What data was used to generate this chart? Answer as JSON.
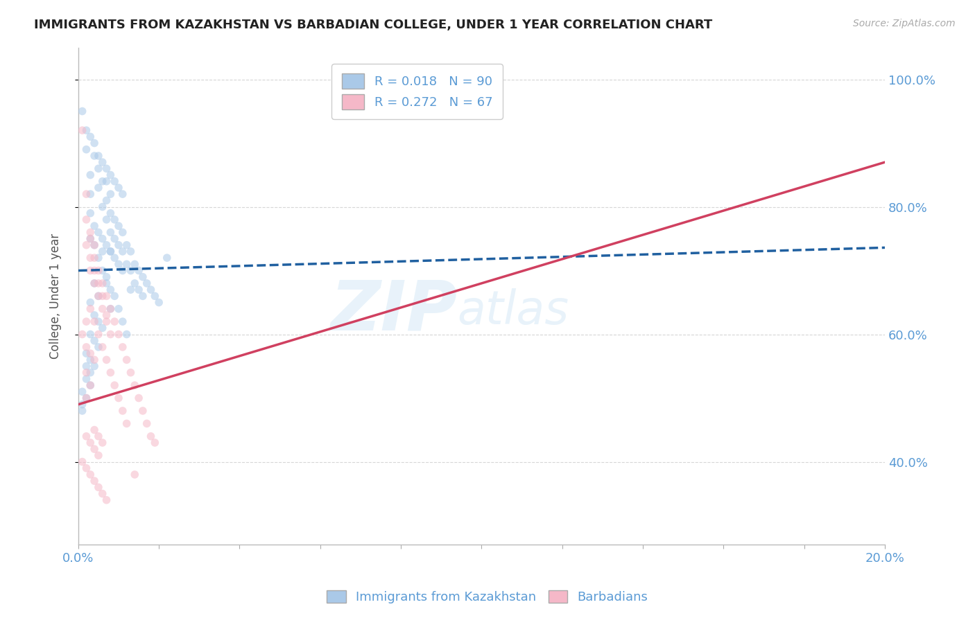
{
  "title": "IMMIGRANTS FROM KAZAKHSTAN VS BARBADIAN COLLEGE, UNDER 1 YEAR CORRELATION CHART",
  "source": "Source: ZipAtlas.com",
  "ylabel": "College, Under 1 year",
  "xlim": [
    0.0,
    0.2
  ],
  "ylim": [
    0.27,
    1.05
  ],
  "yticks": [
    0.4,
    0.6,
    0.8,
    1.0
  ],
  "xticks_shown": [
    0.0,
    0.2
  ],
  "xticks_minor": [
    0.02,
    0.04,
    0.06,
    0.08,
    0.1,
    0.12,
    0.14,
    0.16,
    0.18
  ],
  "legend_entries": [
    {
      "label": "R = 0.018   N = 90",
      "color": "#aac9e8"
    },
    {
      "label": "R = 0.272   N = 67",
      "color": "#f5b8c8"
    }
  ],
  "bottom_legend": [
    {
      "label": "Immigrants from Kazakhstan",
      "color": "#aac9e8"
    },
    {
      "label": "Barbadians",
      "color": "#f5b8c8"
    }
  ],
  "blue_scatter_x": [
    0.001,
    0.002,
    0.003,
    0.003,
    0.004,
    0.005,
    0.005,
    0.006,
    0.006,
    0.007,
    0.007,
    0.007,
    0.008,
    0.008,
    0.008,
    0.008,
    0.009,
    0.009,
    0.01,
    0.01,
    0.01,
    0.011,
    0.011,
    0.011,
    0.012,
    0.012,
    0.013,
    0.013,
    0.013,
    0.014,
    0.014,
    0.015,
    0.015,
    0.016,
    0.016,
    0.017,
    0.018,
    0.019,
    0.02,
    0.022,
    0.004,
    0.005,
    0.006,
    0.007,
    0.008,
    0.009,
    0.01,
    0.011,
    0.012,
    0.003,
    0.004,
    0.005,
    0.006,
    0.007,
    0.008,
    0.003,
    0.004,
    0.005,
    0.006,
    0.003,
    0.004,
    0.005,
    0.002,
    0.003,
    0.004,
    0.002,
    0.003,
    0.002,
    0.003,
    0.001,
    0.002,
    0.001,
    0.001,
    0.002,
    0.003,
    0.004,
    0.005,
    0.006,
    0.007,
    0.008,
    0.009,
    0.01,
    0.011,
    0.003,
    0.004,
    0.005,
    0.006,
    0.007,
    0.008,
    0.009
  ],
  "blue_scatter_y": [
    0.95,
    0.89,
    0.85,
    0.82,
    0.88,
    0.86,
    0.83,
    0.84,
    0.8,
    0.84,
    0.81,
    0.78,
    0.82,
    0.79,
    0.76,
    0.73,
    0.78,
    0.75,
    0.77,
    0.74,
    0.71,
    0.76,
    0.73,
    0.7,
    0.74,
    0.71,
    0.73,
    0.7,
    0.67,
    0.71,
    0.68,
    0.7,
    0.67,
    0.69,
    0.66,
    0.68,
    0.67,
    0.66,
    0.65,
    0.72,
    0.68,
    0.66,
    0.7,
    0.69,
    0.64,
    0.66,
    0.64,
    0.62,
    0.6,
    0.75,
    0.74,
    0.72,
    0.73,
    0.68,
    0.67,
    0.65,
    0.63,
    0.62,
    0.61,
    0.6,
    0.59,
    0.58,
    0.57,
    0.56,
    0.55,
    0.55,
    0.54,
    0.53,
    0.52,
    0.51,
    0.5,
    0.49,
    0.48,
    0.92,
    0.91,
    0.9,
    0.88,
    0.87,
    0.86,
    0.85,
    0.84,
    0.83,
    0.82,
    0.79,
    0.77,
    0.76,
    0.75,
    0.74,
    0.73,
    0.72
  ],
  "pink_scatter_x": [
    0.001,
    0.002,
    0.003,
    0.004,
    0.005,
    0.006,
    0.007,
    0.007,
    0.008,
    0.009,
    0.01,
    0.011,
    0.012,
    0.013,
    0.014,
    0.015,
    0.016,
    0.017,
    0.018,
    0.019,
    0.003,
    0.004,
    0.005,
    0.006,
    0.007,
    0.008,
    0.009,
    0.01,
    0.011,
    0.012,
    0.003,
    0.004,
    0.005,
    0.006,
    0.007,
    0.008,
    0.002,
    0.003,
    0.004,
    0.005,
    0.002,
    0.003,
    0.004,
    0.002,
    0.003,
    0.004,
    0.002,
    0.003,
    0.002,
    0.002,
    0.001,
    0.002,
    0.003,
    0.004,
    0.005,
    0.001,
    0.002,
    0.003,
    0.004,
    0.005,
    0.006,
    0.007,
    0.014,
    0.006,
    0.004,
    0.005,
    0.006
  ],
  "pink_scatter_y": [
    0.92,
    0.82,
    0.75,
    0.72,
    0.7,
    0.68,
    0.66,
    0.63,
    0.64,
    0.62,
    0.6,
    0.58,
    0.56,
    0.54,
    0.52,
    0.5,
    0.48,
    0.46,
    0.44,
    0.43,
    0.64,
    0.62,
    0.6,
    0.58,
    0.56,
    0.54,
    0.52,
    0.5,
    0.48,
    0.46,
    0.7,
    0.68,
    0.66,
    0.64,
    0.62,
    0.6,
    0.74,
    0.72,
    0.7,
    0.68,
    0.78,
    0.76,
    0.74,
    0.58,
    0.57,
    0.56,
    0.54,
    0.52,
    0.5,
    0.62,
    0.6,
    0.44,
    0.43,
    0.42,
    0.41,
    0.4,
    0.39,
    0.38,
    0.37,
    0.36,
    0.35,
    0.34,
    0.38,
    0.66,
    0.45,
    0.44,
    0.43
  ],
  "blue_line_x": [
    0.0,
    0.2
  ],
  "blue_line_y": [
    0.7,
    0.736
  ],
  "pink_line_x": [
    0.0,
    0.2
  ],
  "pink_line_y": [
    0.49,
    0.87
  ],
  "watermark_zip": "ZIP",
  "watermark_atlas": "atlas",
  "scatter_size": 70,
  "scatter_alpha": 0.55,
  "blue_color": "#aac9e8",
  "pink_color": "#f5b8c8",
  "blue_line_color": "#2060a0",
  "pink_line_color": "#d04060",
  "title_color": "#222222",
  "axis_color": "#5b9bd5",
  "grid_color": "#cccccc"
}
